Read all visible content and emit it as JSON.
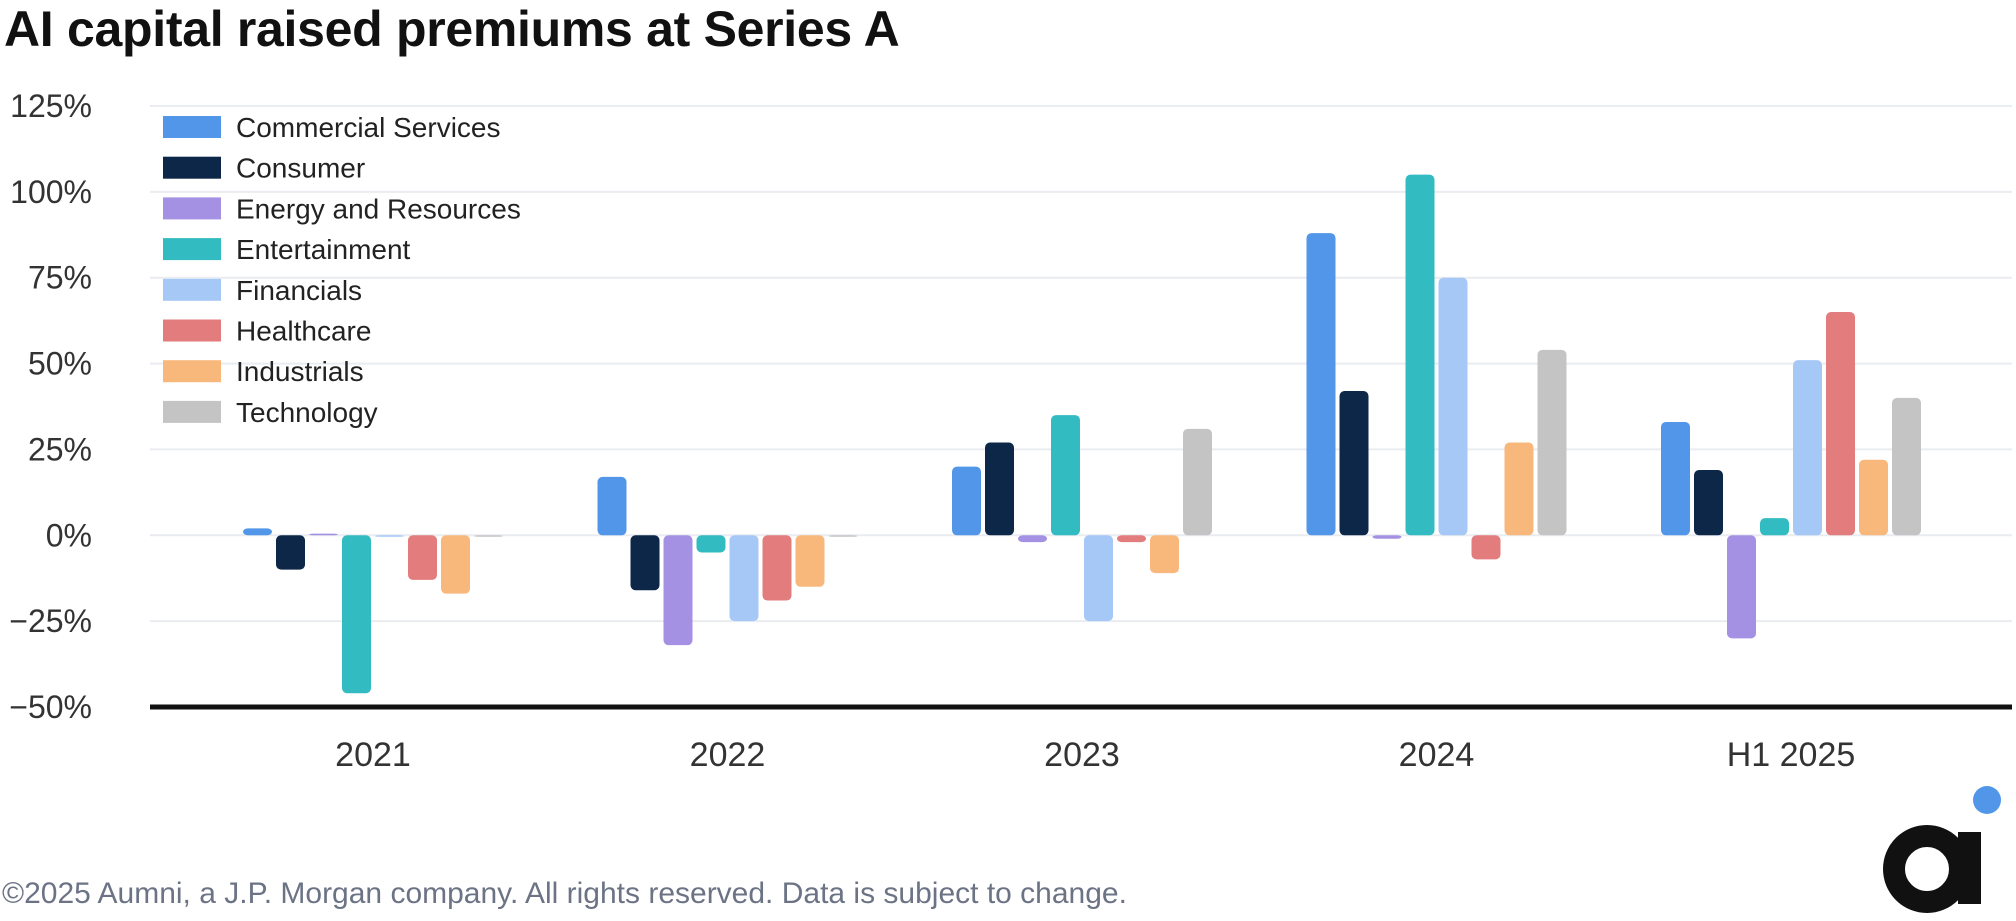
{
  "title": "AI capital raised premiums at Series A",
  "footer": "©2025 Aumni, a J.P. Morgan company. All rights reserved. Data is subject to change.",
  "logo": {
    "letter": "a",
    "dot_color": "#5196e8",
    "letter_color": "#111111"
  },
  "chart_data": {
    "type": "bar",
    "title": "AI capital raised premiums at Series A",
    "xlabel": "",
    "ylabel": "",
    "ylim": [
      -50,
      125
    ],
    "yticks": [
      125,
      100,
      75,
      50,
      25,
      0,
      -25,
      -50
    ],
    "ytick_labels": [
      "125%",
      "100%",
      "75%",
      "50%",
      "25%",
      "0%",
      "−25%",
      "−50%"
    ],
    "grid": true,
    "legend_position": "top-left",
    "categories": [
      "2021",
      "2022",
      "2023",
      "2024",
      "H1 2025"
    ],
    "series": [
      {
        "name": "Commercial Services",
        "color": "#5196e8",
        "values": [
          2,
          17,
          20,
          88,
          33
        ]
      },
      {
        "name": "Consumer",
        "color": "#0d2748",
        "values": [
          -10,
          -16,
          27,
          42,
          19
        ]
      },
      {
        "name": "Energy and Resources",
        "color": "#a591e3",
        "values": [
          0.5,
          -32,
          -2,
          -1,
          -30
        ]
      },
      {
        "name": "Entertainment",
        "color": "#32bcc1",
        "values": [
          -46,
          -5,
          35,
          105,
          5
        ]
      },
      {
        "name": "Financials",
        "color": "#a6c8f7",
        "values": [
          0,
          -25,
          -25,
          75,
          51
        ]
      },
      {
        "name": "Healthcare",
        "color": "#e37c7c",
        "values": [
          -13,
          -19,
          -2,
          -7,
          65
        ]
      },
      {
        "name": "Industrials",
        "color": "#f8b87c",
        "values": [
          -17,
          -15,
          -11,
          27,
          22
        ]
      },
      {
        "name": "Technology",
        "color": "#c4c4c4",
        "values": [
          0,
          0,
          31,
          54,
          40
        ]
      }
    ]
  }
}
